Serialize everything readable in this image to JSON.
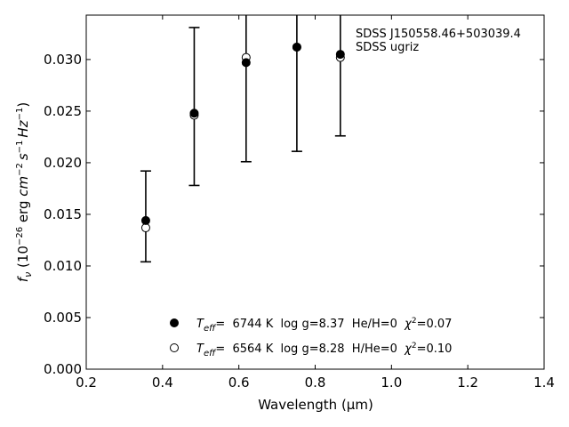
{
  "chart_data": {
    "type": "scatter",
    "xlabel": "Wavelength (μm)",
    "ylabel_parts": {
      "f": "f",
      "nu": "ν",
      "pre": " (10",
      "exp": "−26",
      "post": " erg ",
      "cm": "cm",
      "cm_exp": "−2",
      "s": "s",
      "s_exp": "−1",
      "hz": "Hz",
      "hz_exp": "−1",
      "close": ")"
    },
    "xlim": [
      0.2,
      1.4
    ],
    "ylim": [
      0.0,
      0.0343
    ],
    "x_ticks": [
      0.2,
      0.4,
      0.6,
      0.8,
      1.0,
      1.2,
      1.4
    ],
    "x_tick_labels": [
      "0.2",
      "0.4",
      "0.6",
      "0.8",
      "1.0",
      "1.2",
      "1.4"
    ],
    "y_ticks": [
      0.0,
      0.005,
      0.01,
      0.015,
      0.02,
      0.025,
      0.03
    ],
    "y_tick_labels": [
      "0.000",
      "0.005",
      "0.010",
      "0.015",
      "0.020",
      "0.025",
      "0.030"
    ],
    "annotations": [
      "SDSS J150558.46+503039.4",
      "SDSS ugriz"
    ],
    "errorbars": {
      "x": [
        0.356,
        0.483,
        0.619,
        0.752,
        0.866
      ],
      "y": [
        0.0144,
        0.0248,
        0.0297,
        0.0312,
        0.0305
      ],
      "ylow": [
        0.0104,
        0.0178,
        0.0201,
        0.0211,
        0.0226
      ],
      "yhigh": [
        0.0192,
        0.0331,
        0.0375,
        0.039,
        0.0384
      ]
    },
    "series": [
      {
        "name": "T_eff= 6744 K log g=8.37 He/H=0 χ²=0.07",
        "marker": "filled",
        "x": [
          0.356,
          0.483,
          0.619,
          0.752,
          0.866
        ],
        "y": [
          0.0144,
          0.0248,
          0.0297,
          0.0312,
          0.0305
        ],
        "legend": {
          "T": "T",
          "eff": "eff",
          "text": "=  6744 K  log g=8.37  He/H=0  ",
          "chi": "χ",
          "chi_exp": "2",
          "chi_val": "=0.07"
        }
      },
      {
        "name": "T_eff= 6564 K log g=8.28 H/He=0 χ²=0.10",
        "marker": "open",
        "x": [
          0.356,
          0.483,
          0.619,
          0.752,
          0.866
        ],
        "y": [
          0.0137,
          0.0246,
          0.0302,
          0.0312,
          0.0302
        ],
        "legend": {
          "T": "T",
          "eff": "eff",
          "text": "=  6564 K  log g=8.28  H/He=0  ",
          "chi": "χ",
          "chi_exp": "2",
          "chi_val": "=0.10"
        }
      }
    ],
    "legend_position": "lower-center",
    "grid": false
  }
}
